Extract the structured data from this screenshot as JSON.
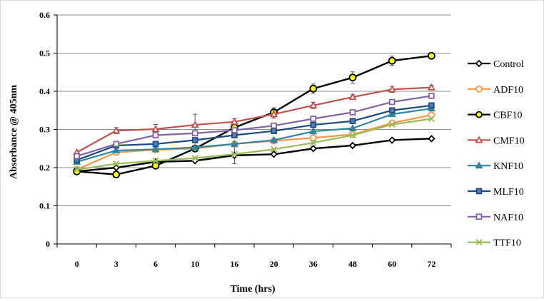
{
  "chart_data": {
    "type": "line",
    "title": "",
    "xlabel": "Time (hrs)",
    "ylabel": "Absorbance @ 405nm",
    "categories": [
      "0",
      "3",
      "6",
      "10",
      "16",
      "20",
      "36",
      "48",
      "60",
      "72"
    ],
    "ylim": [
      0,
      0.6
    ],
    "yticks": [
      "0",
      "0.1",
      "0.2",
      "0.3",
      "0.4",
      "0.5",
      "0.6"
    ],
    "grid": "horizontal",
    "legend_position": "right",
    "series": [
      {
        "name": "Control",
        "color": "#000000",
        "marker": "diamond",
        "marker_fill": "#ffffff",
        "values": [
          0.19,
          0.2,
          0.215,
          0.218,
          0.232,
          0.235,
          0.25,
          0.258,
          0.272,
          0.276
        ],
        "errors": [
          0,
          0,
          0,
          0,
          0.022,
          0,
          0,
          0,
          0,
          0
        ]
      },
      {
        "name": "ADF10",
        "color": "#f79646",
        "marker": "circle",
        "marker_fill": "#ffffff",
        "values": [
          0.195,
          0.24,
          0.247,
          0.25,
          0.262,
          0.27,
          0.278,
          0.287,
          0.317,
          0.338
        ],
        "errors": [
          0,
          0,
          0,
          0,
          0,
          0,
          0,
          0,
          0,
          0
        ]
      },
      {
        "name": "CBF10",
        "color": "#000000",
        "marker": "circle",
        "marker_fill": "#ffff00",
        "values": [
          0.19,
          0.182,
          0.205,
          0.25,
          0.305,
          0.345,
          0.407,
          0.436,
          0.48,
          0.493
        ],
        "errors": [
          0,
          0,
          0,
          0,
          0,
          0.012,
          0.012,
          0.015,
          0.012,
          0.005
        ]
      },
      {
        "name": "CMF10",
        "color": "#c0504d",
        "marker": "triangle",
        "marker_fill": "#ffffff",
        "values": [
          0.24,
          0.297,
          0.301,
          0.312,
          0.32,
          0.34,
          0.363,
          0.385,
          0.405,
          0.41
        ],
        "errors": [
          0,
          0.008,
          0.012,
          0.028,
          0.008,
          0.01,
          0.008,
          0.006,
          0.008,
          0.006
        ]
      },
      {
        "name": "KNF10",
        "color": "#31859c",
        "marker": "triangle",
        "marker_fill": "#31859c",
        "values": [
          0.215,
          0.245,
          0.248,
          0.253,
          0.262,
          0.272,
          0.295,
          0.303,
          0.34,
          0.355
        ],
        "errors": [
          0,
          0,
          0,
          0,
          0,
          0,
          0,
          0,
          0,
          0
        ]
      },
      {
        "name": "MLF10",
        "color": "#1f497d",
        "marker": "square",
        "marker_fill": "#4f81bd",
        "values": [
          0.22,
          0.258,
          0.262,
          0.272,
          0.285,
          0.296,
          0.312,
          0.322,
          0.35,
          0.363
        ],
        "errors": [
          0,
          0,
          0,
          0,
          0,
          0,
          0,
          0,
          0,
          0
        ]
      },
      {
        "name": "NAF10",
        "color": "#8064a2",
        "marker": "square",
        "marker_fill": "#ffffff",
        "values": [
          0.23,
          0.262,
          0.285,
          0.29,
          0.298,
          0.31,
          0.328,
          0.345,
          0.372,
          0.388
        ],
        "errors": [
          0,
          0,
          0,
          0,
          0,
          0,
          0,
          0,
          0,
          0
        ]
      },
      {
        "name": "TTF10",
        "color": "#9bbb59",
        "marker": "x",
        "marker_fill": "#ffffff",
        "values": [
          0.195,
          0.21,
          0.218,
          0.225,
          0.235,
          0.248,
          0.265,
          0.285,
          0.313,
          0.328
        ],
        "errors": [
          0,
          0,
          0,
          0,
          0,
          0,
          0,
          0,
          0,
          0
        ]
      }
    ]
  }
}
